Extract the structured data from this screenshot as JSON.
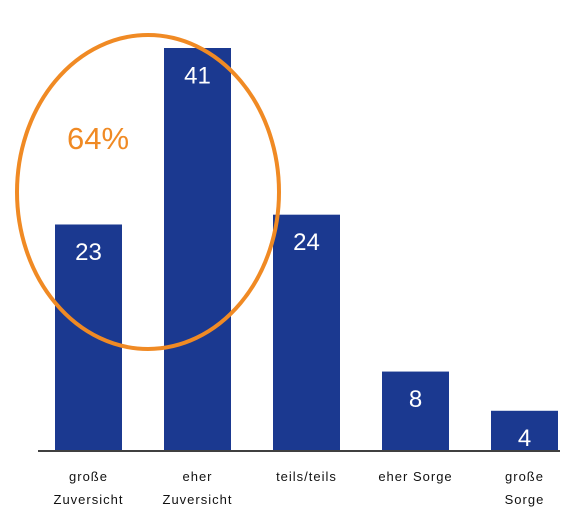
{
  "chart_data": {
    "type": "bar",
    "categories": [
      "große\nZuversicht",
      "eher\nZuversicht",
      "teils/teils",
      "eher Sorge",
      "große\nSorge"
    ],
    "values": [
      23,
      41,
      24,
      8,
      4
    ],
    "color": "#1b3990",
    "annotation": {
      "text": "64%",
      "color": "#f08a24"
    }
  }
}
